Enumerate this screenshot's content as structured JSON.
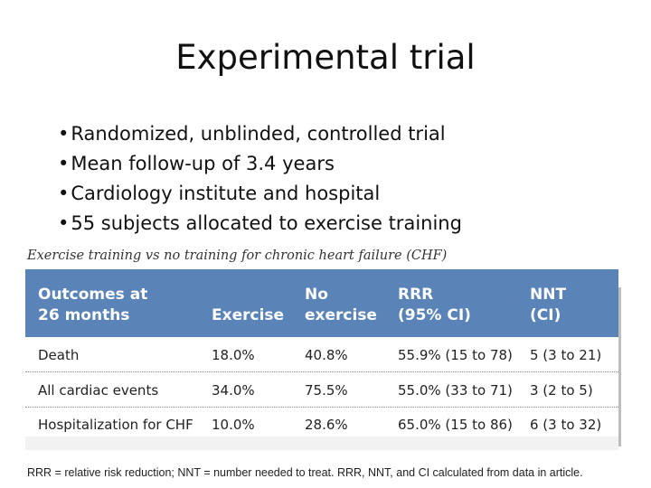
{
  "slide": {
    "title": "Experimental trial",
    "bullets": [
      "Randomized, unblinded, controlled trial",
      "Mean follow-up of 3.4 years",
      "Cardiology institute and hospital",
      "55 subjects allocated to exercise training"
    ]
  },
  "table": {
    "caption": "Exercise training vs no training for chronic heart failure (CHF)",
    "headers": [
      "Outcomes at\n26 months",
      "Exercise",
      "No\nexercise",
      "RRR\n(95% CI)",
      "NNT\n(CI)"
    ],
    "rows": [
      [
        "Death",
        "18.0%",
        "40.8%",
        "55.9% (15 to 78)",
        "5 (3 to 21)"
      ],
      [
        "All cardiac events",
        "34.0%",
        "75.5%",
        "55.0% (33 to 71)",
        "3 (2 to 5)"
      ],
      [
        "Hospitalization for CHF",
        "10.0%",
        "28.6%",
        "65.0% (15 to 86)",
        "6 (3 to 32)"
      ]
    ],
    "footnote": "RRR = relative risk reduction; NNT = number needed to treat. RRR, NNT, and CI calculated from data in article."
  },
  "colors": {
    "header_background": "#5a83b8",
    "header_text": "#ffffff",
    "table_background": "#f2f2f2"
  }
}
